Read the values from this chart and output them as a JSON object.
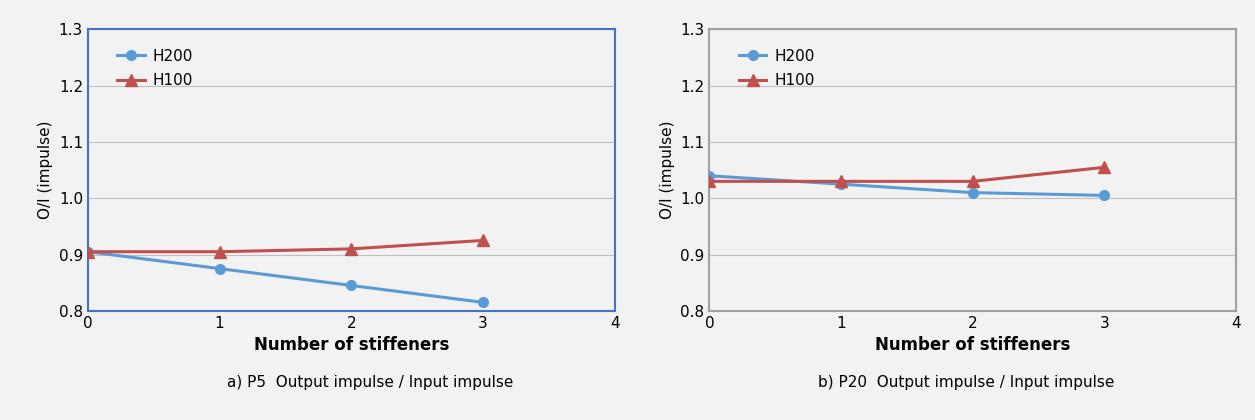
{
  "left": {
    "H200": {
      "x": [
        0,
        1,
        2,
        3
      ],
      "y": [
        0.905,
        0.875,
        0.845,
        0.815
      ]
    },
    "H100": {
      "x": [
        0,
        1,
        2,
        3
      ],
      "y": [
        0.905,
        0.905,
        0.91,
        0.925
      ]
    },
    "box_color": "#4472c4"
  },
  "right": {
    "H200": {
      "x": [
        0,
        1,
        2,
        3
      ],
      "y": [
        1.04,
        1.025,
        1.01,
        1.005
      ]
    },
    "H100": {
      "x": [
        0,
        1,
        2,
        3
      ],
      "y": [
        1.03,
        1.03,
        1.03,
        1.055
      ]
    },
    "box_color": "#a0a0a0"
  },
  "ylabel": "O/I (impulse)",
  "xlabel": "Number of stiffeners",
  "ylim": [
    0.8,
    1.3
  ],
  "xlim": [
    0,
    4
  ],
  "yticks": [
    0.8,
    0.9,
    1.0,
    1.1,
    1.2,
    1.3
  ],
  "xticks": [
    0,
    1,
    2,
    3,
    4
  ],
  "color_H200": "#5b9bd5",
  "color_H100": "#c0504d",
  "line_width": 2.2,
  "marker_size_circle": 7,
  "marker_size_triangle": 8,
  "background_color": "#f2f2f2",
  "subtitle_left": "a) P5  Output impulse / Input impulse",
  "subtitle_right": "b) P20  Output impulse / Input impulse"
}
